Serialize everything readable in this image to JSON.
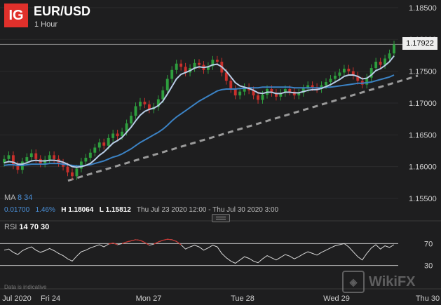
{
  "header": {
    "logo_text": "IG",
    "symbol": "EUR/USD",
    "timeframe": "1 Hour"
  },
  "current_price": "1.17922",
  "ma_row": {
    "label": "MA",
    "fast": "8",
    "slow": "34"
  },
  "stats": {
    "change": "0.01700",
    "change_pct": "1.46%",
    "high_label": "H",
    "high": "1.18064",
    "low_label": "L",
    "low": "1.15812",
    "range": "Thu Jul 23 2020 12:00 - Thu Jul 30 2020 3:00"
  },
  "rsi_row": {
    "label": "RSI",
    "period": "14",
    "upper": "70",
    "lower": "30"
  },
  "footer_note": "Data is indicative",
  "watermark": "WikiFX",
  "colors": {
    "up": "#2e9e3e",
    "down": "#c9302c",
    "ma_fast": "#b8cde6",
    "ma_slow": "#3b82c4",
    "trend": "#9a9a9a",
    "rsi": "#d8d8d8",
    "rsi_over": "#c9302c"
  },
  "chart_data": [
    {
      "type": "candlestick",
      "title": "EUR/USD",
      "subtitle": "1 Hour",
      "ylim": [
        1.1528,
        1.1862
      ],
      "y_ticks": [
        "1.18500",
        "1.18000",
        "1.17500",
        "1.17000",
        "1.16500",
        "1.16000",
        "1.15500"
      ],
      "x_ticks": [
        "Jul 2020",
        "Fri 24",
        "Mon 27",
        "Tue 28",
        "Wed 29",
        "Thu 30"
      ],
      "close": [
        1.1612,
        1.1618,
        1.1602,
        1.1595,
        1.1608,
        1.1615,
        1.1621,
        1.1612,
        1.1605,
        1.1611,
        1.1618,
        1.1612,
        1.1606,
        1.16,
        1.1591,
        1.1585,
        1.1597,
        1.1608,
        1.1614,
        1.1622,
        1.163,
        1.1638,
        1.1633,
        1.1645,
        1.1652,
        1.1648,
        1.1655,
        1.1668,
        1.168,
        1.1695,
        1.1702,
        1.1698,
        1.169,
        1.1694,
        1.1706,
        1.172,
        1.1738,
        1.1752,
        1.1762,
        1.1757,
        1.1748,
        1.1755,
        1.1763,
        1.176,
        1.1752,
        1.1758,
        1.1768,
        1.1765,
        1.1748,
        1.1735,
        1.1722,
        1.1712,
        1.1718,
        1.1725,
        1.172,
        1.1712,
        1.1705,
        1.1713,
        1.1722,
        1.1716,
        1.171,
        1.1716,
        1.1722,
        1.1718,
        1.1712,
        1.1716,
        1.1723,
        1.1728,
        1.1725,
        1.1722,
        1.1728,
        1.1733,
        1.1738,
        1.1743,
        1.1748,
        1.1754,
        1.175,
        1.1743,
        1.1735,
        1.1729,
        1.174,
        1.1755,
        1.1765,
        1.176,
        1.177,
        1.1778,
        1.1792
      ],
      "ma_fast": [
        1.1606,
        1.1608,
        1.1607,
        1.1604,
        1.1604,
        1.1606,
        1.1609,
        1.161,
        1.1609,
        1.1609,
        1.161,
        1.161,
        1.1609,
        1.1607,
        1.1604,
        1.16,
        1.1599,
        1.16,
        1.1602,
        1.1605,
        1.1611,
        1.1618,
        1.1623,
        1.163,
        1.1637,
        1.1641,
        1.1646,
        1.1654,
        1.1662,
        1.1672,
        1.1681,
        1.1687,
        1.169,
        1.1692,
        1.1696,
        1.1703,
        1.1714,
        1.1726,
        1.1738,
        1.1745,
        1.1748,
        1.1751,
        1.1755,
        1.1757,
        1.1756,
        1.1757,
        1.176,
        1.1761,
        1.1757,
        1.175,
        1.1741,
        1.1732,
        1.1727,
        1.1725,
        1.1723,
        1.172,
        1.1716,
        1.1715,
        1.1717,
        1.1717,
        1.1715,
        1.1715,
        1.1717,
        1.1717,
        1.1716,
        1.1716,
        1.1718,
        1.172,
        1.1721,
        1.1721,
        1.1723,
        1.1726,
        1.1729,
        1.1733,
        1.1737,
        1.1742,
        1.1744,
        1.1744,
        1.1742,
        1.1738,
        1.1739,
        1.1744,
        1.1751,
        1.1754,
        1.1759,
        1.1765,
        1.1774
      ],
      "ma_slow": [
        1.1602,
        1.1603,
        1.1603,
        1.1602,
        1.1602,
        1.1603,
        1.1604,
        1.1604,
        1.1604,
        1.1604,
        1.1605,
        1.1605,
        1.1605,
        1.1604,
        1.1603,
        1.1602,
        1.1601,
        1.1601,
        1.1602,
        1.1603,
        1.1605,
        1.1607,
        1.1609,
        1.1612,
        1.1615,
        1.1617,
        1.162,
        1.1624,
        1.1628,
        1.1633,
        1.1638,
        1.1642,
        1.1646,
        1.165,
        1.1654,
        1.1659,
        1.1665,
        1.1672,
        1.1678,
        1.1683,
        1.1688,
        1.1693,
        1.1698,
        1.1703,
        1.1707,
        1.1711,
        1.1715,
        1.1719,
        1.1721,
        1.1722,
        1.1722,
        1.1722,
        1.1723,
        1.1723,
        1.1724,
        1.1724,
        1.1724,
        1.1725,
        1.1725,
        1.1725,
        1.1725,
        1.1725,
        1.1725,
        1.1725,
        1.1724,
        1.1724,
        1.1724,
        1.1724,
        1.1724,
        1.1724,
        1.1724,
        1.1725,
        1.1725,
        1.1726,
        1.1727,
        1.1728,
        1.1729,
        1.173,
        1.1731,
        1.1731,
        1.1732,
        1.1733,
        1.1735,
        1.1737,
        1.1739,
        1.1741,
        1.1744
      ],
      "trendline": {
        "start": 1.1578,
        "end": 1.1743,
        "style": "dashed"
      }
    },
    {
      "type": "line",
      "title": "RSI",
      "ylim": [
        0,
        100
      ],
      "y_ticks": [
        "70",
        "30"
      ],
      "values": [
        58,
        60,
        54,
        50,
        57,
        61,
        64,
        58,
        54,
        57,
        61,
        57,
        52,
        48,
        42,
        38,
        47,
        55,
        58,
        62,
        65,
        68,
        64,
        69,
        71,
        68,
        70,
        73,
        75,
        77,
        76,
        72,
        67,
        69,
        73,
        76,
        78,
        77,
        74,
        68,
        60,
        64,
        67,
        64,
        58,
        62,
        67,
        64,
        52,
        44,
        38,
        34,
        40,
        46,
        43,
        38,
        35,
        42,
        48,
        44,
        40,
        45,
        50,
        47,
        42,
        46,
        51,
        55,
        52,
        49,
        54,
        58,
        62,
        66,
        68,
        70,
        64,
        55,
        46,
        40,
        52,
        62,
        68,
        60,
        66,
        63,
        68
      ]
    }
  ]
}
